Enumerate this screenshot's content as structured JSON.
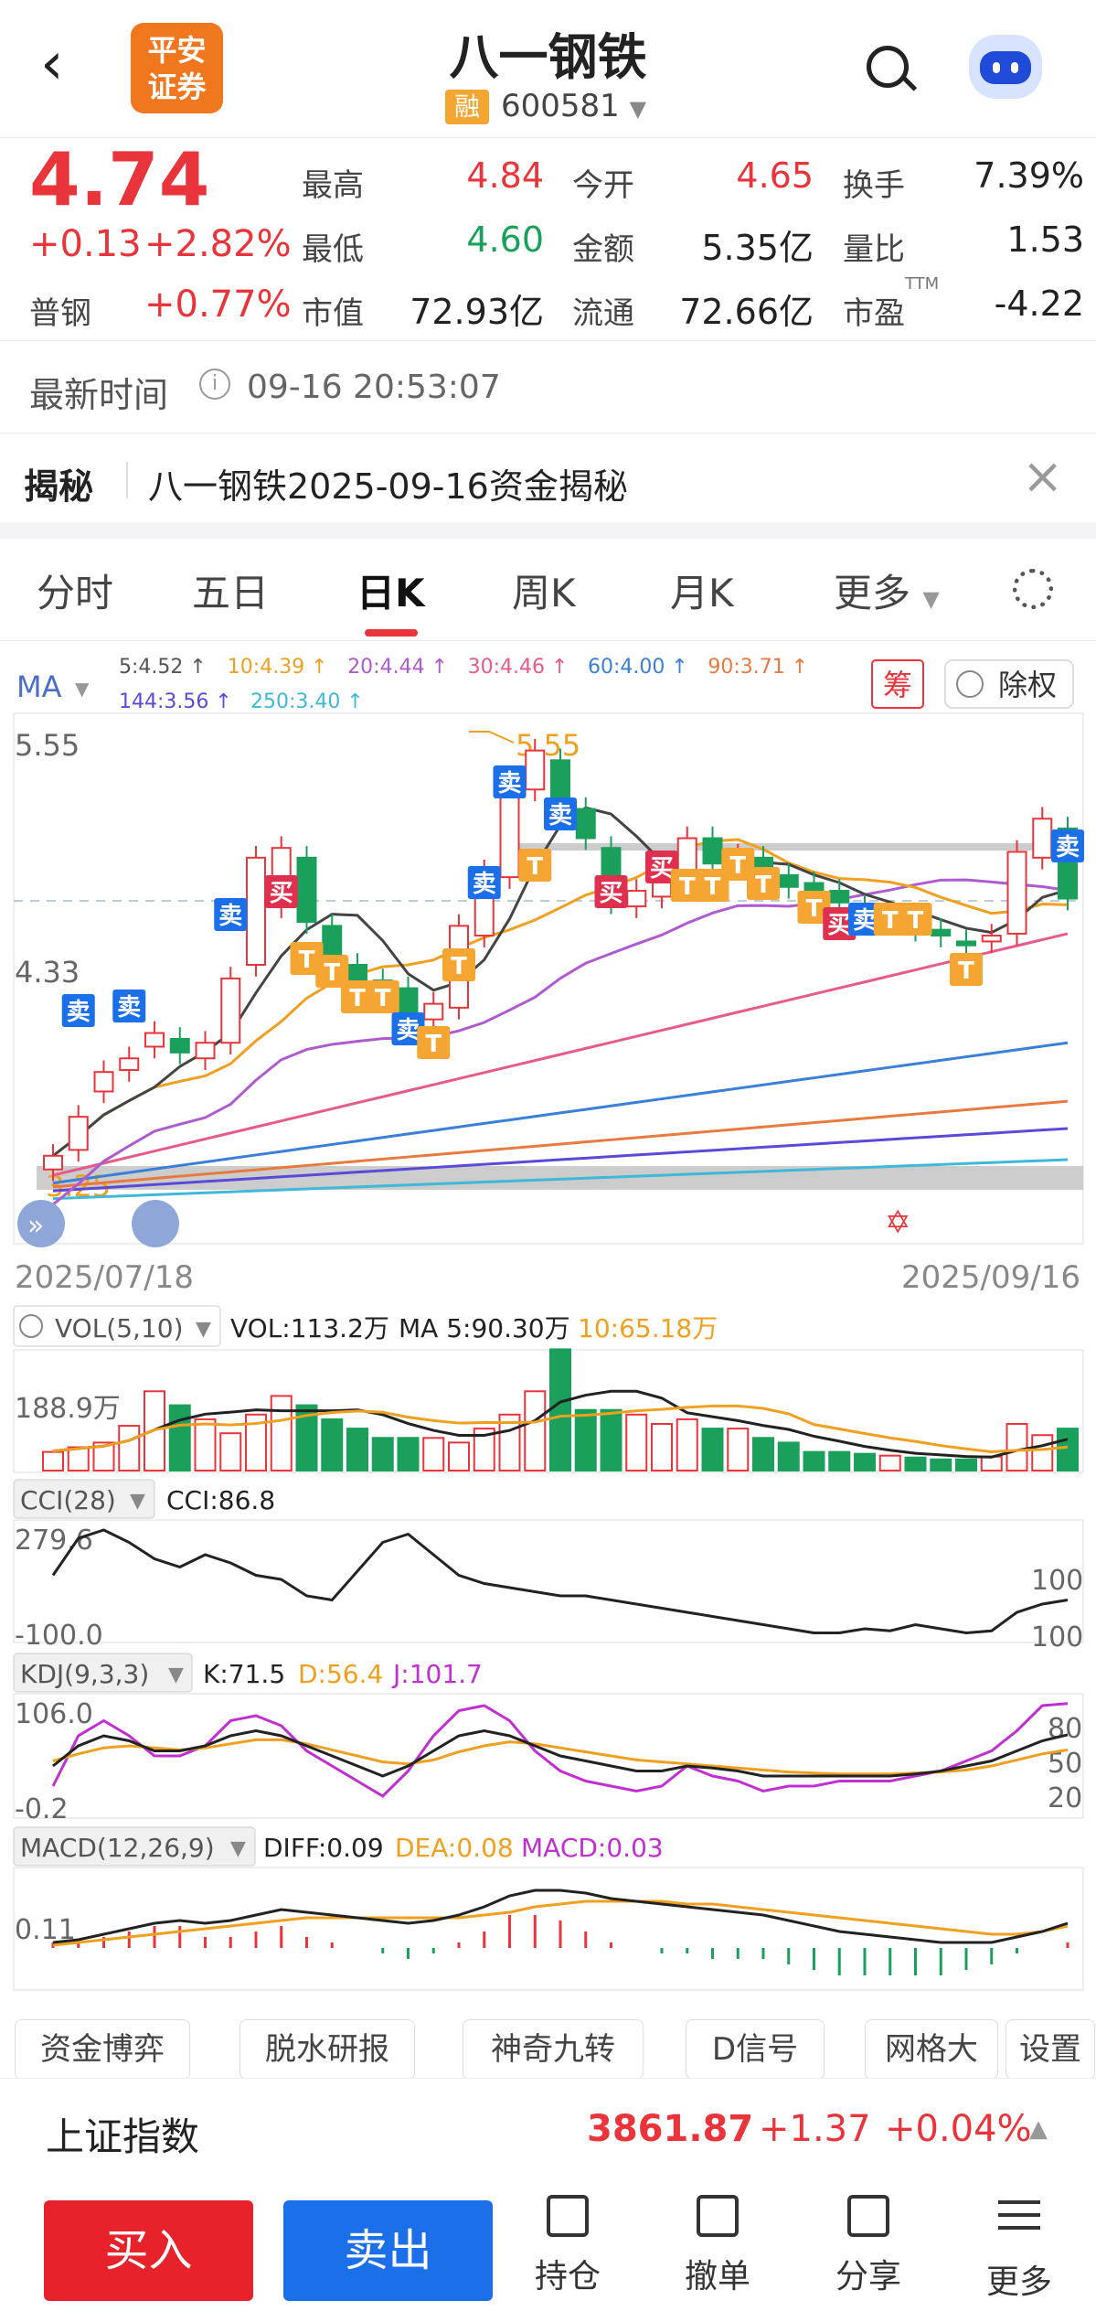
{
  "header": {
    "back_icon": "chevron-left-icon",
    "logo_line1": "平安",
    "logo_line2": "证券",
    "stock_name": "八一钢铁",
    "margin_badge": "融",
    "stock_code": "600581",
    "search_icon": "search-icon",
    "assistant_icon": "robot-icon"
  },
  "quote": {
    "price": "4.74",
    "change": "+0.13",
    "change_pct": "+2.82%",
    "sector_name": "普钢",
    "sector_pct": "+0.77%",
    "high_label": "最高",
    "high": "4.84",
    "open_label": "今开",
    "open": "4.65",
    "turnover_label": "换手",
    "turnover": "7.39%",
    "low_label": "最低",
    "low": "4.60",
    "amount_label": "金额",
    "amount": "5.35亿",
    "volratio_label": "量比",
    "volratio": "1.53",
    "mktcap_label": "市值",
    "mktcap": "72.93亿",
    "float_label": "流通",
    "float": "72.66亿",
    "pe_label": "市盈",
    "pe_sup": "TTM",
    "pe": "-4.22"
  },
  "latest": {
    "label": "最新时间",
    "time": "09-16 20:53:07"
  },
  "reveal": {
    "tag": "揭秘",
    "text": "八一钢铁2025-09-16资金揭秘"
  },
  "tabs": [
    "分时",
    "五日",
    "日K",
    "周K",
    "月K",
    "更多"
  ],
  "colors": {
    "red": "#e8343a",
    "green": "#1aa05a",
    "orange": "#f0a020",
    "blue": "#1b6fe8"
  },
  "chart": {
    "ma_label": "MA",
    "ma_items": [
      {
        "text": "5:4.52",
        "color": "#555555"
      },
      {
        "text": "10:4.39",
        "color": "#f0a020"
      },
      {
        "text": "20:4.44",
        "color": "#b05ad0"
      },
      {
        "text": "30:4.46",
        "color": "#e85a8a"
      },
      {
        "text": "60:4.00",
        "color": "#3a80d8"
      },
      {
        "text": "90:3.71",
        "color": "#e87a40"
      }
    ],
    "ma_items2": [
      {
        "text": "144:3.56",
        "color": "#5a4ad8"
      },
      {
        "text": "250:3.40",
        "color": "#40b8d8"
      }
    ],
    "chip_button": "筹",
    "adjust_button": "除权",
    "price_high_label": "5.55",
    "price_mid_label": "4.33",
    "price_low_label": "3.25",
    "max_marker": "5.55",
    "min_marker": "3.25",
    "date_start": "2025/07/18",
    "date_end": "2025/09/16",
    "vol_title": "VOL(5,10)",
    "vol_value": "VOL:113.2万",
    "vol_ma5": "MA 5:90.30万",
    "vol_ma10": "10:65.18万",
    "vol_axis": "188.9万",
    "cci_title": "CCI(28)",
    "cci_value": "CCI:86.8",
    "cci_top": "279.6",
    "cci_bottom": "-100.0",
    "cci_r1": "100",
    "cci_r2": "100",
    "kdj_title": "KDJ(9,3,3)",
    "kdj_k": "K:71.5",
    "kdj_d": "D:56.4",
    "kdj_j": "J:101.7",
    "kdj_top": "106.0",
    "kdj_bottom": "-0.2",
    "kdj_r80": "80",
    "kdj_r50": "50",
    "kdj_r20": "20",
    "macd_title": "MACD(12,26,9)",
    "macd_diff": "DIFF:0.09",
    "macd_dea": "DEA:0.08",
    "macd_val": "MACD:0.03",
    "macd_axis": "0.11",
    "sell_mark": "卖",
    "buy_mark": "买",
    "t_mark": "T"
  },
  "chart_data": {
    "type": "candlestick",
    "x_start": "2025/07/18",
    "x_end": "2025/09/16",
    "y_axis_labels": [
      "5.55",
      "4.33"
    ],
    "last_close": 4.74
  },
  "functions": [
    "资金博弈",
    "脱水研报",
    "神奇九转",
    "D信号",
    "网格大",
    "设置"
  ],
  "index": {
    "name": "上证指数",
    "value": "3861.87",
    "change": "+1.37",
    "pct": "+0.04%"
  },
  "actions": {
    "buy": "买入",
    "sell": "卖出",
    "items": [
      {
        "label": "持仓",
        "icon": "position-icon"
      },
      {
        "label": "撤单",
        "icon": "cancel-order-icon"
      },
      {
        "label": "分享",
        "icon": "share-icon"
      },
      {
        "label": "更多",
        "icon": "menu-icon"
      }
    ]
  }
}
